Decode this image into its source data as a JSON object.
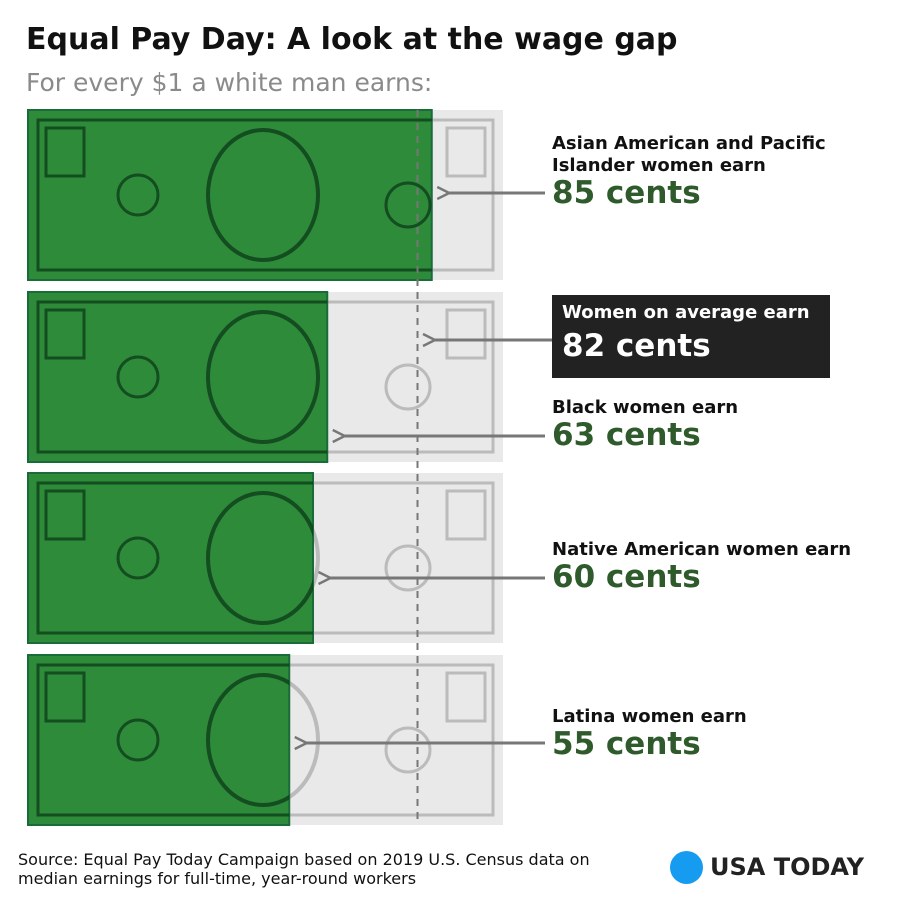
{
  "chart_data": {
    "type": "bar",
    "title": "Equal Pay Day: A look at the wage gap",
    "subtitle": "For every $1 a white man earns:",
    "categories": [
      "Asian American and Pacific Islander women earn",
      "Black women earn",
      "Native American women earn",
      "Latina women earn"
    ],
    "values": [
      85,
      63,
      60,
      55
    ],
    "value_labels": [
      "85 cents",
      "63 cents",
      "60 cents",
      "55 cents"
    ],
    "reference": {
      "label": "Women on average earn",
      "value": 82,
      "value_label": "82 cents"
    },
    "xlim": [
      0,
      100
    ],
    "color": "#2e8b3a",
    "source": "Source: Equal Pay Today Campaign based on 2019 U.S. Census data on median earnings for full-time, year-round workers",
    "brand": "USA TODAY"
  }
}
